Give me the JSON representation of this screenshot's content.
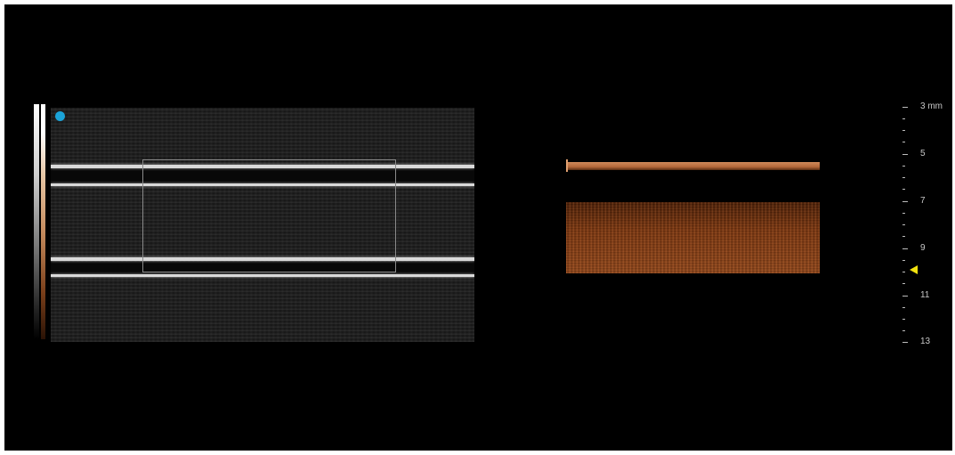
{
  "colors": {
    "probe_marker": "#1ba3d8",
    "focus_marker": "#f2e20f",
    "tint": "#b4683a"
  },
  "icons": {
    "probe_orientation": "probe-orientation-dot-icon",
    "focus": "focus-depth-triangle-icon"
  },
  "depth_scale": {
    "unit": "mm",
    "labels": [
      "3 mm",
      "5",
      "7",
      "9",
      "11",
      "13"
    ],
    "focus_depth_value": 10
  }
}
